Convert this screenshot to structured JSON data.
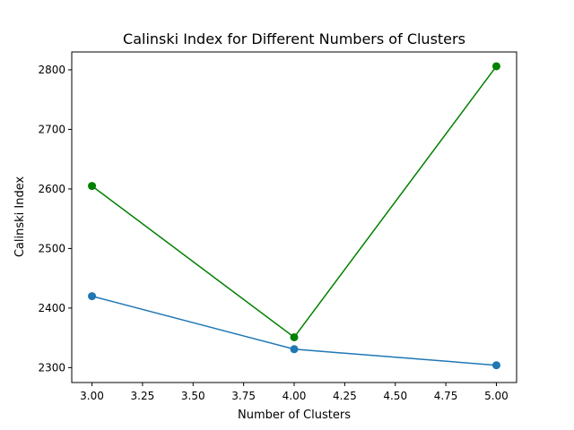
{
  "chart_data": {
    "type": "line",
    "title": "Calinski Index for Different Numbers of Clusters",
    "xlabel": "Number of Clusters",
    "ylabel": "Calinski Index",
    "x": [
      3,
      4,
      5
    ],
    "xlim": [
      2.9,
      5.1
    ],
    "ylim": [
      2275,
      2830
    ],
    "xticks": [
      "3.00",
      "3.25",
      "3.50",
      "3.75",
      "4.00",
      "4.25",
      "4.50",
      "4.75",
      "5.00"
    ],
    "xtick_values": [
      3.0,
      3.25,
      3.5,
      3.75,
      4.0,
      4.25,
      4.5,
      4.75,
      5.0
    ],
    "yticks": [
      "2300",
      "2400",
      "2500",
      "2600",
      "2700",
      "2800"
    ],
    "ytick_values": [
      2300,
      2400,
      2500,
      2600,
      2700,
      2800
    ],
    "grid": false,
    "legend": false,
    "series": [
      {
        "values": [
          2420,
          2331,
          2304
        ],
        "color": "#1f77b4",
        "marker": "circle"
      },
      {
        "values": [
          2605,
          2351,
          2806
        ],
        "color": "#008000",
        "marker": "circle"
      }
    ]
  }
}
